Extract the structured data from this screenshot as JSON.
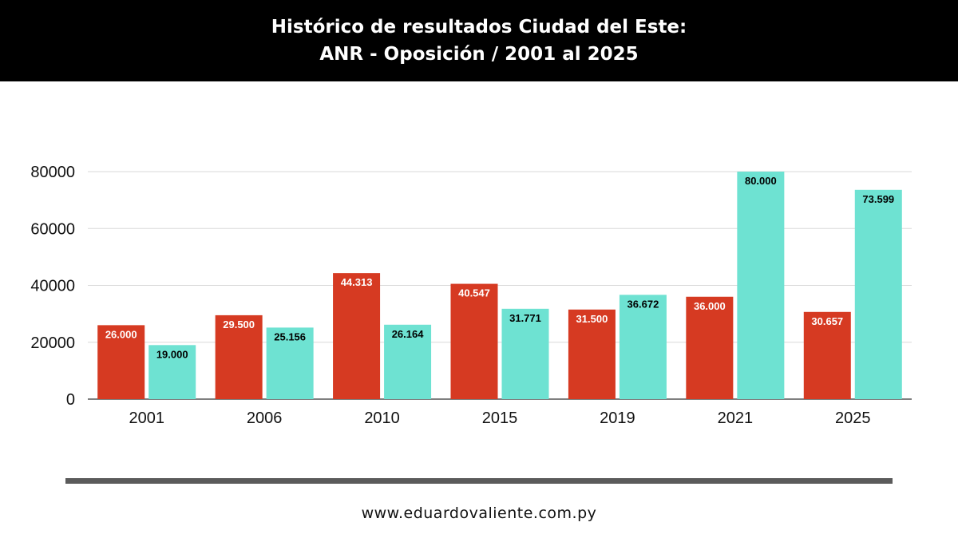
{
  "header": {
    "title_line1": "Histórico de resultados Ciudad del Este:",
    "title_line2": "ANR - Oposición / 2001 al 2025"
  },
  "chart_data": {
    "type": "bar",
    "categories": [
      "2001",
      "2006",
      "2010",
      "2015",
      "2019",
      "2021",
      "2025"
    ],
    "series": [
      {
        "color": "#d63a22",
        "values": [
          26000,
          29500,
          44313,
          40547,
          31500,
          36000,
          30657
        ],
        "labels": [
          "26.000",
          "29.500",
          "44.313",
          "40.547",
          "31.500",
          "36.000",
          "30.657"
        ]
      },
      {
        "color": "#6ee2d2",
        "values": [
          19000,
          25156,
          26164,
          31771,
          36672,
          80000,
          73599
        ],
        "labels": [
          "19.000",
          "25.156",
          "26.164",
          "31.771",
          "36.672",
          "80.000",
          "73.599"
        ]
      }
    ],
    "ylim": [
      0,
      80000
    ],
    "yticks": [
      0,
      20000,
      40000,
      60000,
      80000
    ],
    "grid": true,
    "legend": "none"
  },
  "footer": {
    "url": "www.eduardovaliente.com.py"
  }
}
